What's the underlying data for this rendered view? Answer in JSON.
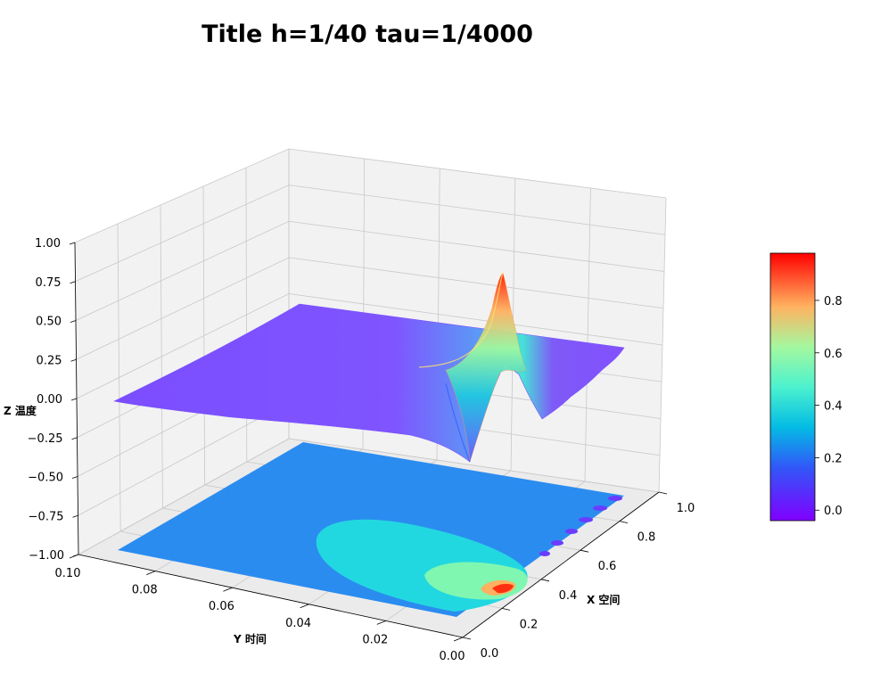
{
  "chart_data": {
    "type": "surface3d",
    "title": "Title h=1/40 tau=1/4000",
    "xlabel": "X 空间",
    "ylabel": "Y 时间",
    "zlabel": "Z 温度",
    "xlim": [
      0,
      1
    ],
    "ylim": [
      0,
      0.1
    ],
    "zlim": [
      -1,
      1
    ],
    "x_ticks": [
      "0.0",
      "0.2",
      "0.4",
      "0.6",
      "0.8",
      "1.0"
    ],
    "y_ticks": [
      "0.00",
      "0.02",
      "0.04",
      "0.06",
      "0.08",
      "0.10"
    ],
    "z_ticks": [
      "−1.00",
      "−0.75",
      "−0.50",
      "−0.25",
      "0.00",
      "0.25",
      "0.50",
      "0.75",
      "1.00"
    ],
    "colormap": "rainbow",
    "colorbar": {
      "min": -0.04,
      "max": 0.98,
      "ticks": [
        "0.0",
        "0.2",
        "0.4",
        "0.6",
        "0.8"
      ]
    },
    "grid": true,
    "projection": "filled contour of surface on floor plane z=-1"
  }
}
